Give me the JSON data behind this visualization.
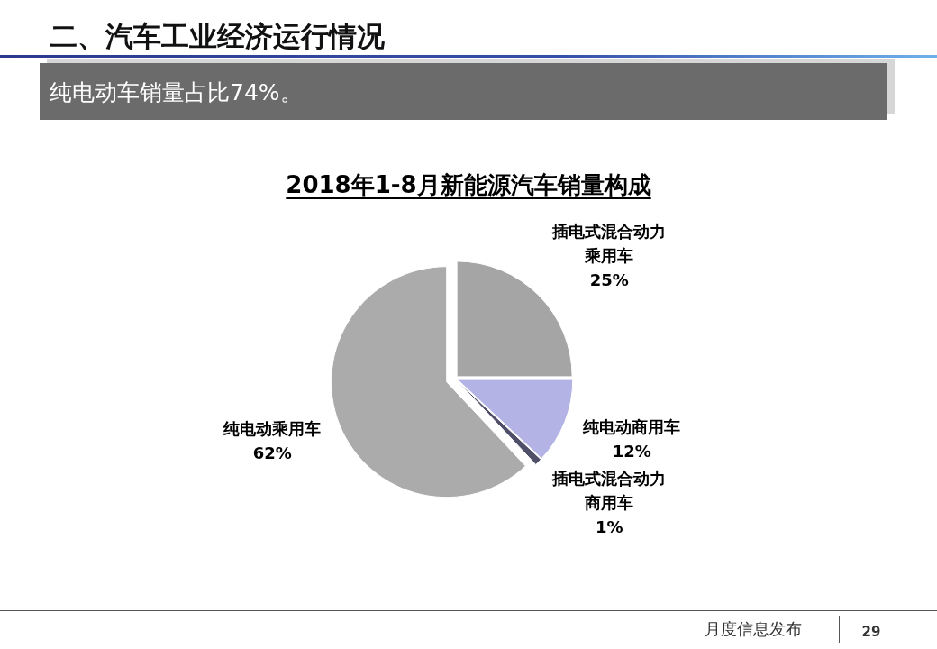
{
  "chart_data": {
    "type": "pie",
    "title": "2018年1-8月新能源汽车销量构成",
    "subtitle": "纯电动车销量占比74%。",
    "categories": [
      "插电式混合动力乘用车",
      "纯电动商用车",
      "插电式混合动力商用车",
      "纯电动乘用车"
    ],
    "values": [
      25,
      12,
      1,
      62
    ],
    "colors": [
      "#a5a5a5",
      "#b3b3e5",
      "#4f4f69",
      "#ababab"
    ],
    "value_labels": [
      "25%",
      "12%",
      "1%",
      "62%"
    ],
    "annotations": [
      "二、汽车工业经济运行情况",
      "月度信息发布",
      "29"
    ]
  }
}
